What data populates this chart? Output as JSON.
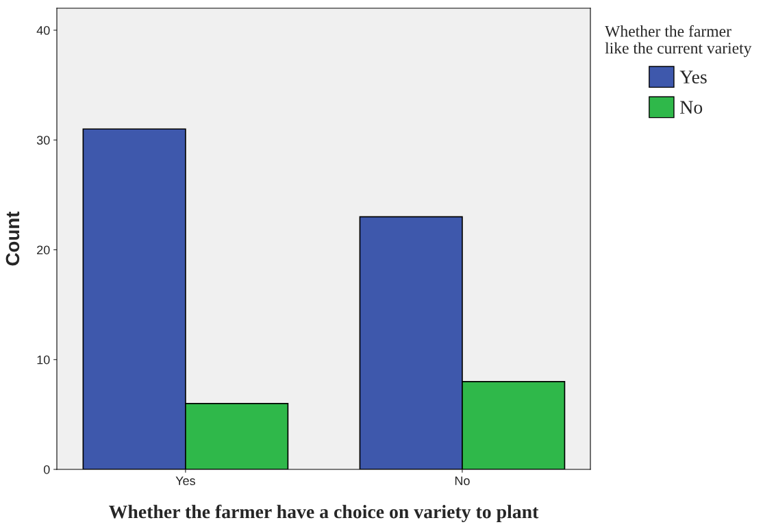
{
  "chart_data": {
    "type": "bar",
    "xlabel": "Whether the farmer have a choice on variety to plant",
    "ylabel": "Count",
    "legend_title": "Whether the farmer\nlike the current variety",
    "categories": [
      "Yes",
      "No"
    ],
    "series": [
      {
        "name": "Yes",
        "color": "#3e58ac",
        "values": [
          31,
          23
        ]
      },
      {
        "name": "No",
        "color": "#2fb84a",
        "values": [
          6,
          8
        ]
      }
    ],
    "ylim": [
      0,
      42
    ],
    "yticks": [
      0,
      10,
      20,
      30,
      40
    ],
    "grid": false,
    "legend": "top right"
  }
}
